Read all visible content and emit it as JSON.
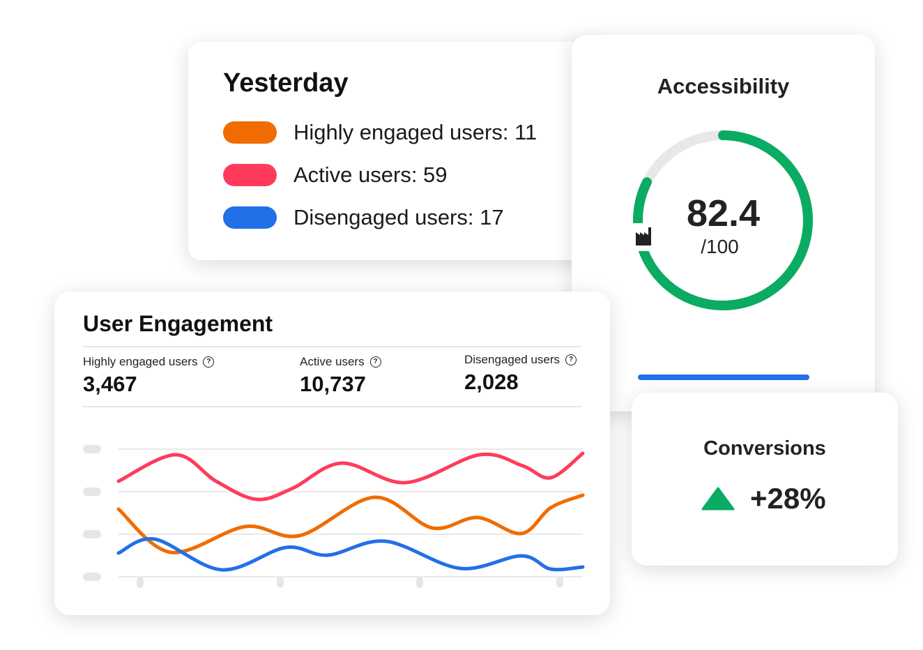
{
  "yesterday": {
    "title": "Yesterday",
    "items": [
      {
        "label": "Highly engaged users: 11",
        "color": "#f06c00"
      },
      {
        "label": "Active users: 59",
        "color": "#ff3b5c"
      },
      {
        "label": "Disengaged users: 17",
        "color": "#2170e8"
      }
    ]
  },
  "accessibility": {
    "title": "Accessibility",
    "score": "82.4",
    "out_of": "/100",
    "score_value": 82.4,
    "color": "#0aab62",
    "icon": "factory-icon"
  },
  "engagement": {
    "title": "User Engagement",
    "stats": [
      {
        "label": "Highly engaged users",
        "value": "3,467",
        "icon": "help-icon"
      },
      {
        "label": "Active users",
        "value": "10,737",
        "icon": "help-icon"
      },
      {
        "label": "Disengaged users",
        "value": "2,028",
        "icon": "help-icon"
      }
    ],
    "help_glyph": "?",
    "series_colors": {
      "highly_engaged": "#f06c00",
      "active": "#ff3b5c",
      "disengaged": "#2170e8"
    }
  },
  "conversions": {
    "title": "Conversions",
    "value": "+28%",
    "trend": "up",
    "trend_color": "#0aab62"
  }
}
